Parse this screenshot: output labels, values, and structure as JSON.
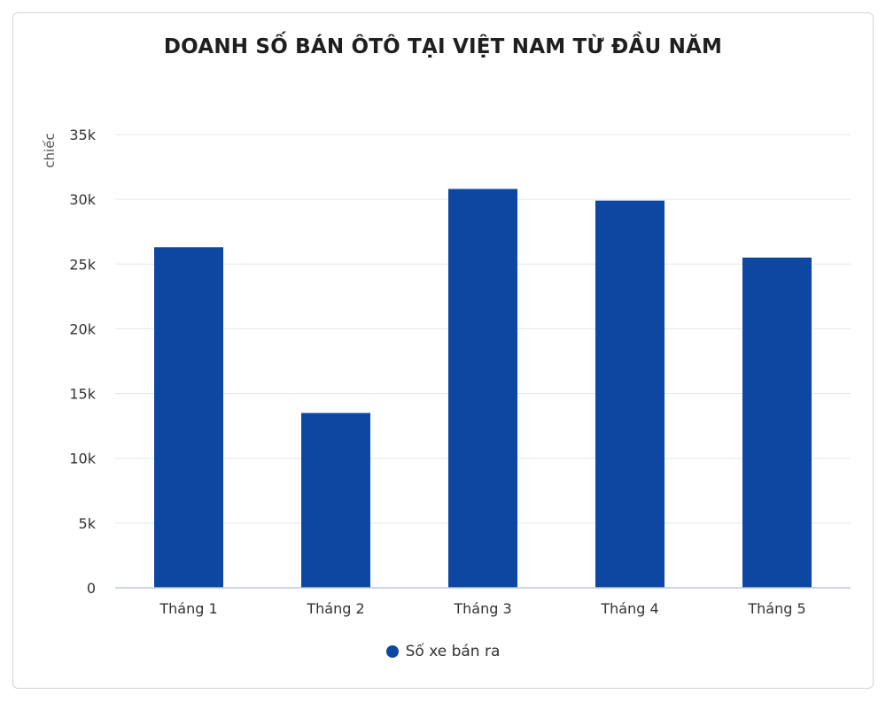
{
  "chart_data": {
    "type": "bar",
    "title": "DOANH SỐ BÁN ÔTÔ TẠI VIỆT NAM TỪ ĐẦU NĂM",
    "ylabel": "chiếc",
    "xlabel": "",
    "categories": [
      "Tháng 1",
      "Tháng 2",
      "Tháng 3",
      "Tháng 4",
      "Tháng 5"
    ],
    "series": [
      {
        "name": "Số xe bán ra",
        "values": [
          26300,
          13500,
          30800,
          29900,
          25500
        ]
      }
    ],
    "ylim": [
      0,
      35000
    ],
    "yticks": [
      0,
      5000,
      10000,
      15000,
      20000,
      25000,
      30000,
      35000
    ],
    "ytick_labels": [
      "0",
      "5k",
      "10k",
      "15k",
      "20k",
      "25k",
      "30k",
      "35k"
    ],
    "grid": true,
    "legend_position": "bottom-center",
    "colors": {
      "bar": "#0d47a1",
      "grid": "#e3e7ec",
      "axis": "#b9c7de",
      "text": "#333333"
    }
  }
}
